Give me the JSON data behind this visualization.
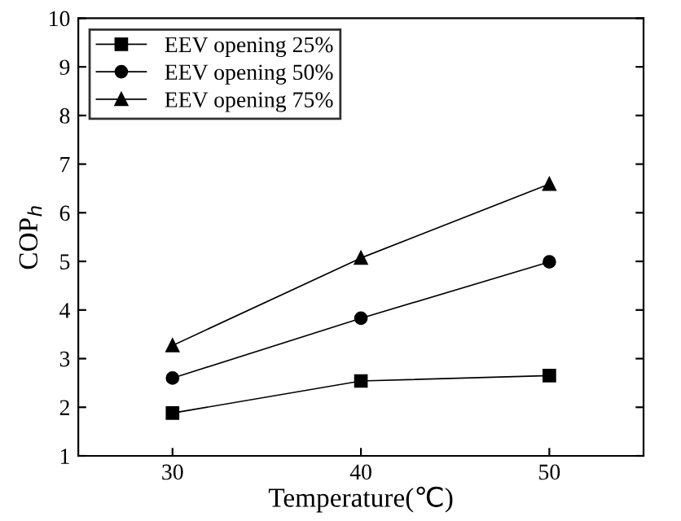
{
  "chart_data": {
    "type": "line",
    "xlabel": "Temperature(℃)",
    "ylabel": "COP$_{h}$",
    "x": [
      30,
      40,
      50
    ],
    "series": [
      {
        "name": "EEV opening 25%",
        "color": "#000000",
        "marker": "square",
        "values": [
          1.88,
          2.54,
          2.65
        ]
      },
      {
        "name": "EEV opening 50%",
        "color": "#000000",
        "marker": "circle",
        "values": [
          2.6,
          3.83,
          4.99
        ]
      },
      {
        "name": "EEV opening 75%",
        "color": "#000000",
        "marker": "triangle",
        "values": [
          3.27,
          5.07,
          6.59
        ]
      }
    ],
    "xlim": [
      25,
      55
    ],
    "xticks": [
      30,
      40,
      50
    ],
    "ylim": [
      1,
      10
    ],
    "yticks": [
      1,
      2,
      3,
      4,
      5,
      6,
      7,
      8,
      9,
      10
    ],
    "grid": false,
    "legend": "top left",
    "line_style": "solid"
  }
}
